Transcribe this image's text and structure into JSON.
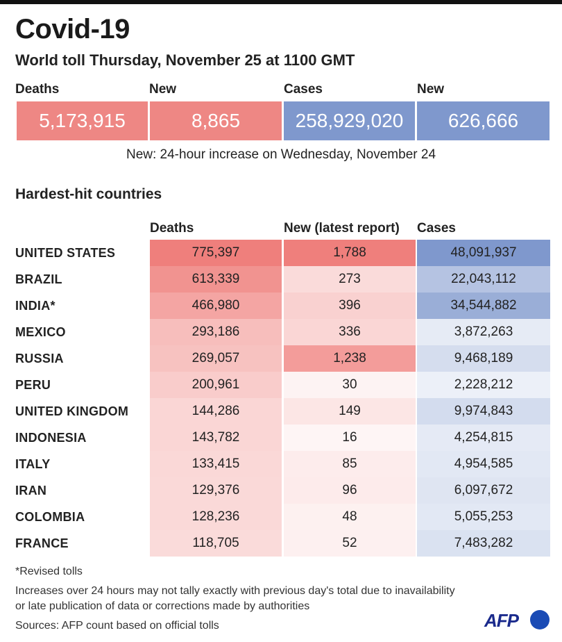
{
  "title": "Covid-19",
  "subtitle": "World toll Thursday, November 25 at 1100 GMT",
  "summary": {
    "deaths_label": "Deaths",
    "deaths_value": "5,173,915",
    "new_deaths_label": "New",
    "new_deaths_value": "8,865",
    "cases_label": "Cases",
    "cases_value": "258,929,020",
    "new_cases_label": "New",
    "new_cases_value": "626,666",
    "colors": {
      "deaths": "#ee8784",
      "cases": "#7f98cd"
    }
  },
  "note": "New: 24-hour increase on Wednesday, November 24",
  "section_title": "Hardest-hit countries",
  "columns": {
    "deaths": "Deaths",
    "new": "New (latest report)",
    "cases": "Cases"
  },
  "chart_data": {
    "type": "table",
    "title": "Hardest-hit countries",
    "columns": [
      "Deaths",
      "New (latest report)",
      "Cases"
    ],
    "rows": [
      {
        "country": "UNITED STATES",
        "deaths": "775,397",
        "new": "1,788",
        "cases": "48,091,937"
      },
      {
        "country": "BRAZIL",
        "deaths": "613,339",
        "new": "273",
        "cases": "22,043,112"
      },
      {
        "country": "INDIA*",
        "deaths": "466,980",
        "new": "396",
        "cases": "34,544,882"
      },
      {
        "country": "MEXICO",
        "deaths": "293,186",
        "new": "336",
        "cases": "3,872,263"
      },
      {
        "country": "RUSSIA",
        "deaths": "269,057",
        "new": "1,238",
        "cases": "9,468,189"
      },
      {
        "country": "PERU",
        "deaths": "200,961",
        "new": "30",
        "cases": "2,228,212"
      },
      {
        "country": "UNITED KINGDOM",
        "deaths": "144,286",
        "new": "149",
        "cases": "9,974,843"
      },
      {
        "country": "INDONESIA",
        "deaths": "143,782",
        "new": "16",
        "cases": "4,254,815"
      },
      {
        "country": "ITALY",
        "deaths": "133,415",
        "new": "85",
        "cases": "4,954,585"
      },
      {
        "country": "IRAN",
        "deaths": "129,376",
        "new": "96",
        "cases": "6,097,672"
      },
      {
        "country": "COLOMBIA",
        "deaths": "128,236",
        "new": "48",
        "cases": "5,055,253"
      },
      {
        "country": "FRANCE",
        "deaths": "118,705",
        "new": "52",
        "cases": "7,483,282"
      }
    ],
    "color_scale": {
      "deaths": "#ef7f7c",
      "new": "#ef7f7c",
      "cases": "#7f98cd"
    }
  },
  "footnotes": {
    "revised": "*Revised tolls",
    "increase_line1": "Increases over 24 hours may not tally exactly with previous day's total due to inavailability",
    "increase_line2": "or late publication of data or corrections made by authorities",
    "sources": "Sources: AFP count based on official tolls"
  },
  "logo": {
    "text": "AFP"
  }
}
